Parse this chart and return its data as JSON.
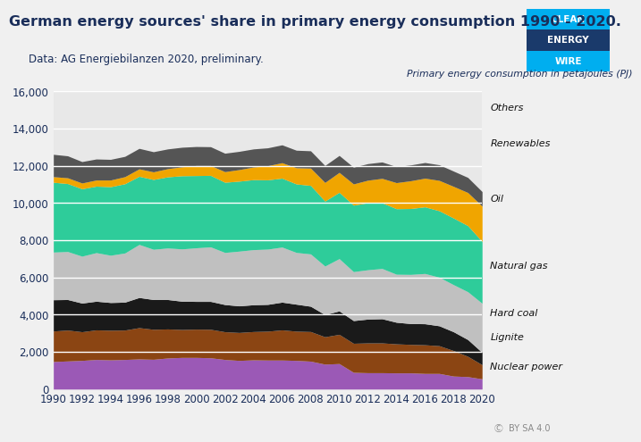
{
  "title": "German energy sources' share in primary energy consumption 1990 - 2020.",
  "subtitle": "Data: AG Energiebilanzen 2020, preliminary.",
  "ylabel": "Primary energy consumption in petajoules (PJ)",
  "years": [
    1990,
    1991,
    1992,
    1993,
    1994,
    1995,
    1996,
    1997,
    1998,
    1999,
    2000,
    2001,
    2002,
    2003,
    2004,
    2005,
    2006,
    2007,
    2008,
    2009,
    2010,
    2011,
    2012,
    2013,
    2014,
    2015,
    2016,
    2017,
    2018,
    2019,
    2020
  ],
  "series": {
    "Nuclear power": [
      1480,
      1510,
      1540,
      1590,
      1570,
      1590,
      1620,
      1600,
      1670,
      1700,
      1700,
      1680,
      1590,
      1540,
      1570,
      1560,
      1560,
      1540,
      1500,
      1340,
      1370,
      900,
      880,
      880,
      870,
      870,
      840,
      840,
      700,
      670,
      550
    ],
    "Lignite": [
      1640,
      1660,
      1540,
      1590,
      1590,
      1580,
      1680,
      1610,
      1560,
      1500,
      1520,
      1530,
      1490,
      1500,
      1520,
      1550,
      1620,
      1570,
      1590,
      1470,
      1570,
      1560,
      1600,
      1600,
      1560,
      1530,
      1540,
      1490,
      1370,
      1090,
      760
    ],
    "Hard coal": [
      1680,
      1640,
      1540,
      1540,
      1490,
      1500,
      1620,
      1600,
      1580,
      1520,
      1490,
      1500,
      1460,
      1430,
      1440,
      1440,
      1490,
      1450,
      1360,
      1190,
      1260,
      1220,
      1280,
      1300,
      1160,
      1120,
      1130,
      1070,
      1010,
      900,
      660
    ],
    "Natural gas": [
      2560,
      2580,
      2520,
      2610,
      2540,
      2640,
      2850,
      2700,
      2770,
      2810,
      2880,
      2930,
      2800,
      2940,
      2960,
      2970,
      2960,
      2780,
      2810,
      2610,
      2810,
      2630,
      2650,
      2700,
      2580,
      2640,
      2700,
      2610,
      2530,
      2570,
      2640
    ],
    "Oil": [
      3750,
      3650,
      3620,
      3570,
      3680,
      3720,
      3660,
      3750,
      3820,
      3930,
      3880,
      3840,
      3770,
      3760,
      3760,
      3720,
      3700,
      3680,
      3680,
      3490,
      3560,
      3570,
      3600,
      3530,
      3520,
      3540,
      3580,
      3570,
      3580,
      3550,
      3320
    ],
    "Renewables": [
      300,
      310,
      310,
      330,
      360,
      380,
      400,
      410,
      440,
      480,
      540,
      530,
      570,
      620,
      680,
      760,
      830,
      870,
      930,
      1000,
      1070,
      1140,
      1210,
      1310,
      1400,
      1490,
      1540,
      1630,
      1700,
      1780,
      1900
    ],
    "Others": [
      1200,
      1180,
      1150,
      1130,
      1110,
      1090,
      1100,
      1080,
      1060,
      1050,
      1020,
      1010,
      990,
      980,
      970,
      960,
      960,
      940,
      930,
      910,
      910,
      900,
      890,
      880,
      860,
      850,
      840,
      840,
      820,
      810,
      780
    ]
  },
  "colors": {
    "Nuclear power": "#9b59b6",
    "Lignite": "#8B4513",
    "Hard coal": "#1a1a1a",
    "Natural gas": "#c0c0c0",
    "Oil": "#2ecc9a",
    "Renewables": "#f0a500",
    "Others": "#555555"
  },
  "ylim": [
    0,
    16000
  ],
  "yticks": [
    0,
    2000,
    4000,
    6000,
    8000,
    10000,
    12000,
    14000,
    16000
  ],
  "ytick_labels": [
    "0",
    "2,000",
    "4,000",
    "6,000",
    "8,000",
    "10,000",
    "12,000",
    "14,000",
    "16,000"
  ],
  "xticks": [
    1990,
    1992,
    1994,
    1996,
    1998,
    2000,
    2002,
    2004,
    2006,
    2008,
    2010,
    2012,
    2014,
    2016,
    2018,
    2020
  ],
  "bg_color": "#f0f0f0",
  "plot_bg": "#e8e8e8",
  "grid_color": "#ffffff",
  "title_color": "#1a2e5a",
  "subtitle_color": "#1a2e5a",
  "label_fontsize": 8.5,
  "title_fontsize": 11.5,
  "subtitle_fontsize": 8.5,
  "logo_colors": [
    "#00aeef",
    "#1a3a6b",
    "#00aeef"
  ],
  "logo_texts": [
    "CLEAN",
    "ENERGY",
    "WIRE"
  ],
  "series_order": [
    "Nuclear power",
    "Lignite",
    "Hard coal",
    "Natural gas",
    "Oil",
    "Renewables",
    "Others"
  ],
  "label_y_fracs": {
    "Others": 0.945,
    "Renewables": 0.825,
    "Oil": 0.64,
    "Natural gas": 0.415,
    "Hard coal": 0.255,
    "Lignite": 0.175,
    "Nuclear power": 0.075
  }
}
